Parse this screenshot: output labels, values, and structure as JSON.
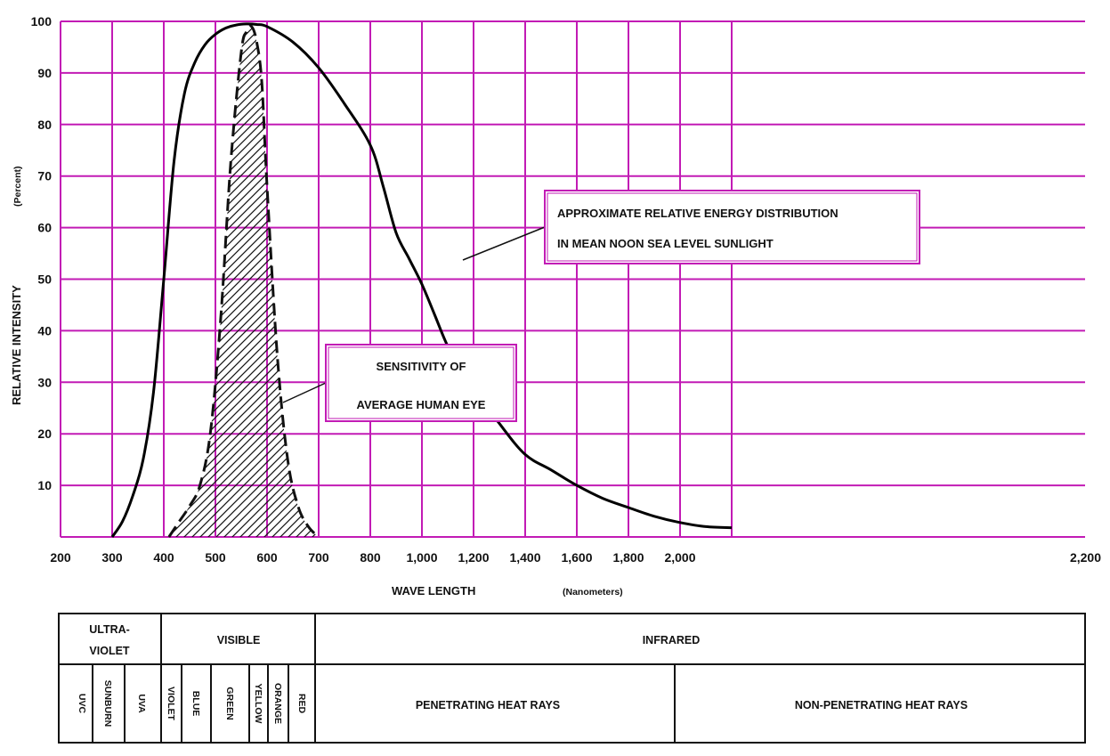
{
  "chart_data": {
    "type": "line",
    "title": "",
    "xlabel": "WAVE LENGTH",
    "xlabel_unit": "(Nanometers)",
    "ylabel": "RELATIVE INTENSITY",
    "ylabel_unit": "(Percent)",
    "xlim": [
      200,
      2200
    ],
    "ylim": [
      0,
      100
    ],
    "grid": true,
    "grid_color": "#c21bb5",
    "line_color": "#000000",
    "x_ticks": [
      {
        "value": 200,
        "label": "200"
      },
      {
        "value": 300,
        "label": "300"
      },
      {
        "value": 400,
        "label": "400"
      },
      {
        "value": 500,
        "label": "500"
      },
      {
        "value": 600,
        "label": "600"
      },
      {
        "value": 700,
        "label": "700"
      },
      {
        "value": 800,
        "label": "800"
      },
      {
        "value": 1000,
        "label": "1,000"
      },
      {
        "value": 1200,
        "label": "1,200"
      },
      {
        "value": 1400,
        "label": "1,400"
      },
      {
        "value": 1600,
        "label": "1,600"
      },
      {
        "value": 1800,
        "label": "1,800"
      },
      {
        "value": 2000,
        "label": "2,000"
      },
      {
        "value": 2200,
        "label": "2,200"
      }
    ],
    "y_ticks": [
      {
        "value": 10,
        "label": "10"
      },
      {
        "value": 20,
        "label": "20"
      },
      {
        "value": 30,
        "label": "30"
      },
      {
        "value": 40,
        "label": "40"
      },
      {
        "value": 50,
        "label": "50"
      },
      {
        "value": 60,
        "label": "60"
      },
      {
        "value": 70,
        "label": "70"
      },
      {
        "value": 80,
        "label": "80"
      },
      {
        "value": 90,
        "label": "90"
      },
      {
        "value": 100,
        "label": "100"
      }
    ],
    "series": [
      {
        "name": "",
        "style": "solid",
        "x": [
          300,
          320,
          340,
          360,
          380,
          400,
          420,
          440,
          460,
          480,
          500,
          520,
          540,
          560,
          580,
          600,
          650,
          700,
          750,
          800,
          850,
          900,
          950,
          1000,
          1050,
          1100,
          1150,
          1200,
          1300,
          1400,
          1500,
          1600,
          1700,
          1800,
          1900,
          2000,
          2100,
          2200
        ],
        "y": [
          0,
          3,
          8,
          15,
          28,
          50,
          73,
          86,
          92,
          95.5,
          97.5,
          98.7,
          99.3,
          99.5,
          99.4,
          99,
          96,
          91,
          84,
          76,
          68,
          59,
          54,
          49,
          43,
          37,
          33,
          29,
          22,
          16,
          13,
          10,
          7.5,
          5.7,
          4,
          2.8,
          2,
          1.8
        ]
      },
      {
        "name": "",
        "style": "dashed-hatched",
        "x": [
          410,
          430,
          450,
          470,
          490,
          510,
          530,
          550,
          560,
          570,
          580,
          590,
          600,
          620,
          640,
          660,
          680,
          700
        ],
        "y": [
          0,
          3,
          6,
          10,
          20,
          42,
          73,
          94,
          98,
          99,
          96,
          88,
          68,
          35,
          15,
          6,
          2,
          0
        ]
      }
    ],
    "annotations": [
      {
        "line1": "APPROXIMATE RELATIVE ENERGY DISTRIBUTION",
        "line2": "IN MEAN NOON SEA LEVEL SUNLIGHT"
      },
      {
        "line1": "SENSITIVITY OF",
        "line2": "AVERAGE HUMAN EYE"
      }
    ],
    "spectrum_bands": {
      "ultraviolet": {
        "line1": "ULTRA-",
        "line2": "VIOLET"
      },
      "visible": "VISIBLE",
      "infrared": "INFRARED",
      "uv_sub": [
        "UVC",
        "SUNBURN",
        "UVA"
      ],
      "visible_sub": [
        "VIOLET",
        "BLUE",
        "GREEN",
        "YELLOW",
        "ORANGE",
        "RED"
      ],
      "infrared_sub": [
        "PENETRATING HEAT RAYS",
        "NON-PENETRATING HEAT RAYS"
      ]
    }
  }
}
